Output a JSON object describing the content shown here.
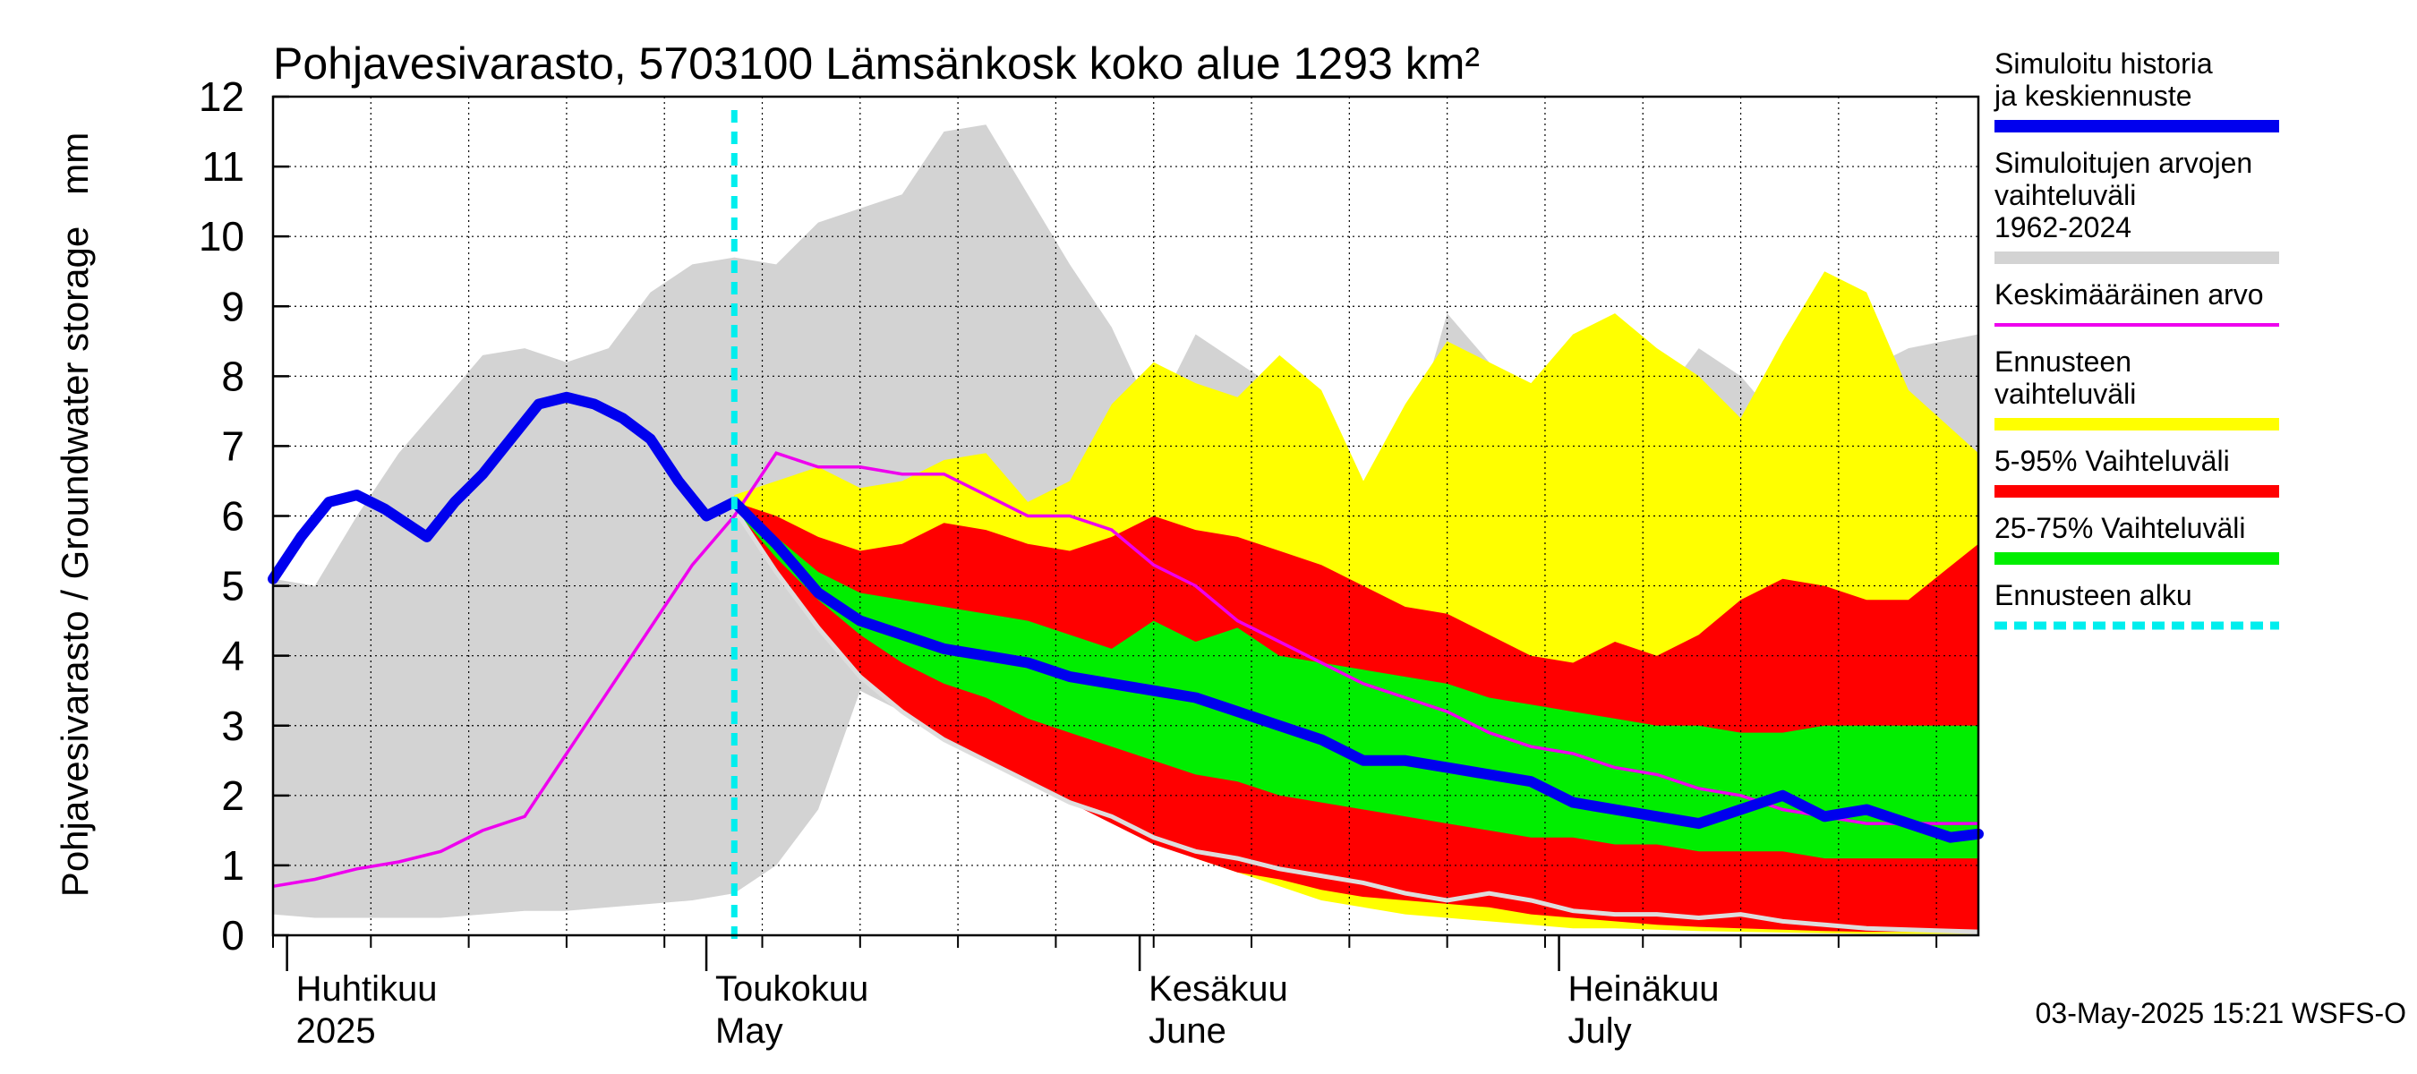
{
  "chart_data": {
    "type": "area",
    "title": "Pohjavesivarasto, 5703100 Lämsänkosk koko alue 1293 km²",
    "ylabel": "Pohjavesivarasto / Groundwater storage   mm",
    "ylim": [
      0,
      12
    ],
    "yticks": [
      0,
      1,
      2,
      3,
      4,
      5,
      6,
      7,
      8,
      9,
      10,
      11,
      12
    ],
    "xlim": [
      "2025-03-31",
      "2025-07-31"
    ],
    "grid": true,
    "legend_position": "right",
    "month_labels": [
      {
        "date": "2025-04-01",
        "fi": "Huhtikuu",
        "en": "2025"
      },
      {
        "date": "2025-05-01",
        "fi": "Toukokuu",
        "en": "May"
      },
      {
        "date": "2025-06-01",
        "fi": "Kesäkuu",
        "en": "June"
      },
      {
        "date": "2025-07-01",
        "fi": "Heinäkuu",
        "en": "July"
      }
    ],
    "forecast_start": "2025-05-03",
    "timestamp": "03-May-2025 15:21 WSFS-O",
    "colors": {
      "history": "#0000ee",
      "hist_range": "#d3d3d3",
      "mean": "#ee00ee",
      "forecast_range": "#ffff00",
      "p5_95": "#ff0000",
      "p25_75": "#00ee00",
      "forecast_start": "#00eeee",
      "forecast_line_light": "#dddddd"
    },
    "series": [
      {
        "key": "hist_range",
        "name": "Simuloitujen arvojen vaihteluväli 1962-2024",
        "x": [
          "2025-03-31",
          "2025-04-03",
          "2025-04-06",
          "2025-04-09",
          "2025-04-12",
          "2025-04-15",
          "2025-04-18",
          "2025-04-21",
          "2025-04-24",
          "2025-04-27",
          "2025-04-30",
          "2025-05-03",
          "2025-05-06",
          "2025-05-09",
          "2025-05-12",
          "2025-05-15",
          "2025-05-18",
          "2025-05-21",
          "2025-05-24",
          "2025-05-27",
          "2025-05-30",
          "2025-06-02",
          "2025-06-05",
          "2025-06-08",
          "2025-06-11",
          "2025-06-14",
          "2025-06-17",
          "2025-06-20",
          "2025-06-23",
          "2025-06-26",
          "2025-06-29",
          "2025-07-02",
          "2025-07-05",
          "2025-07-08",
          "2025-07-11",
          "2025-07-14",
          "2025-07-17",
          "2025-07-20",
          "2025-07-23",
          "2025-07-26",
          "2025-07-31"
        ],
        "upper": [
          5.1,
          5.0,
          6.0,
          6.9,
          7.6,
          8.3,
          8.4,
          8.2,
          8.4,
          9.2,
          9.6,
          9.7,
          9.6,
          10.2,
          10.4,
          10.6,
          11.5,
          11.6,
          10.6,
          9.6,
          8.7,
          7.4,
          8.6,
          8.2,
          7.8,
          7.2,
          5.7,
          6.8,
          8.9,
          8.2,
          7.4,
          8.3,
          8.7,
          7.6,
          8.4,
          8.0,
          7.3,
          7.5,
          8.1,
          8.4,
          8.6
        ],
        "lower": [
          0.3,
          0.25,
          0.25,
          0.25,
          0.25,
          0.3,
          0.35,
          0.35,
          0.4,
          0.45,
          0.5,
          0.6,
          1.0,
          1.8,
          3.5,
          3.2,
          3.4,
          3.0,
          2.6,
          2.3,
          2.0,
          1.8,
          1.5,
          1.2,
          1.0,
          0.8,
          0.7,
          0.6,
          0.5,
          0.35,
          0.3,
          0.2,
          0.2,
          0.15,
          0.1,
          0.08,
          0.05,
          0.05,
          0.04,
          0.03,
          0.03
        ]
      },
      {
        "key": "forecast_range",
        "name": "Ennusteen vaihteluväli",
        "x": [
          "2025-05-03",
          "2025-05-06",
          "2025-05-09",
          "2025-05-12",
          "2025-05-15",
          "2025-05-18",
          "2025-05-21",
          "2025-05-24",
          "2025-05-27",
          "2025-05-30",
          "2025-06-02",
          "2025-06-05",
          "2025-06-08",
          "2025-06-11",
          "2025-06-14",
          "2025-06-17",
          "2025-06-20",
          "2025-06-23",
          "2025-06-26",
          "2025-06-29",
          "2025-07-02",
          "2025-07-05",
          "2025-07-08",
          "2025-07-11",
          "2025-07-14",
          "2025-07-17",
          "2025-07-20",
          "2025-07-23",
          "2025-07-26",
          "2025-07-31"
        ],
        "upper": [
          6.3,
          6.5,
          6.7,
          6.4,
          6.5,
          6.8,
          6.9,
          6.2,
          6.5,
          7.6,
          8.2,
          7.9,
          7.7,
          8.3,
          7.8,
          6.5,
          7.6,
          8.5,
          8.2,
          7.9,
          8.6,
          8.9,
          8.4,
          8.0,
          7.4,
          8.5,
          9.5,
          9.2,
          7.8,
          6.9
        ],
        "lower": [
          6.1,
          5.3,
          4.5,
          3.8,
          3.3,
          2.9,
          2.6,
          2.3,
          2.0,
          1.7,
          1.4,
          1.1,
          0.9,
          0.7,
          0.5,
          0.4,
          0.3,
          0.25,
          0.2,
          0.15,
          0.1,
          0.1,
          0.08,
          0.06,
          0.05,
          0.04,
          0.03,
          0.02,
          0.02,
          0.02
        ]
      },
      {
        "key": "p5_95",
        "name": "5-95% Vaihteluväli",
        "x": [
          "2025-05-03",
          "2025-05-06",
          "2025-05-09",
          "2025-05-12",
          "2025-05-15",
          "2025-05-18",
          "2025-05-21",
          "2025-05-24",
          "2025-05-27",
          "2025-05-30",
          "2025-06-02",
          "2025-06-05",
          "2025-06-08",
          "2025-06-11",
          "2025-06-14",
          "2025-06-17",
          "2025-06-20",
          "2025-06-23",
          "2025-06-26",
          "2025-06-29",
          "2025-07-02",
          "2025-07-05",
          "2025-07-08",
          "2025-07-11",
          "2025-07-14",
          "2025-07-17",
          "2025-07-20",
          "2025-07-23",
          "2025-07-26",
          "2025-07-31"
        ],
        "upper": [
          6.2,
          6.0,
          5.7,
          5.5,
          5.6,
          5.9,
          5.8,
          5.6,
          5.5,
          5.7,
          6.0,
          5.8,
          5.7,
          5.5,
          5.3,
          5.0,
          4.7,
          4.6,
          4.3,
          4.0,
          3.9,
          4.2,
          4.0,
          4.3,
          4.8,
          5.1,
          5.0,
          4.8,
          4.8,
          5.6
        ],
        "lower": [
          6.1,
          5.2,
          4.4,
          3.7,
          3.2,
          2.8,
          2.5,
          2.2,
          1.9,
          1.6,
          1.3,
          1.1,
          0.9,
          0.8,
          0.65,
          0.55,
          0.5,
          0.45,
          0.4,
          0.3,
          0.25,
          0.2,
          0.15,
          0.12,
          0.1,
          0.08,
          0.06,
          0.05,
          0.05,
          0.05
        ]
      },
      {
        "key": "p25_75",
        "name": "25-75% Vaihteluväli",
        "x": [
          "2025-05-03",
          "2025-05-06",
          "2025-05-09",
          "2025-05-12",
          "2025-05-15",
          "2025-05-18",
          "2025-05-21",
          "2025-05-24",
          "2025-05-27",
          "2025-05-30",
          "2025-06-02",
          "2025-06-05",
          "2025-06-08",
          "2025-06-11",
          "2025-06-14",
          "2025-06-17",
          "2025-06-20",
          "2025-06-23",
          "2025-06-26",
          "2025-06-29",
          "2025-07-02",
          "2025-07-05",
          "2025-07-08",
          "2025-07-11",
          "2025-07-14",
          "2025-07-17",
          "2025-07-20",
          "2025-07-23",
          "2025-07-26",
          "2025-07-31"
        ],
        "upper": [
          6.2,
          5.7,
          5.2,
          4.9,
          4.8,
          4.7,
          4.6,
          4.5,
          4.3,
          4.1,
          4.5,
          4.2,
          4.4,
          4.0,
          3.9,
          3.8,
          3.7,
          3.6,
          3.4,
          3.3,
          3.2,
          3.1,
          3.0,
          3.0,
          2.9,
          2.9,
          3.0,
          3.0,
          3.0,
          3.0
        ],
        "lower": [
          6.1,
          5.4,
          4.8,
          4.3,
          3.9,
          3.6,
          3.4,
          3.1,
          2.9,
          2.7,
          2.5,
          2.3,
          2.2,
          2.0,
          1.9,
          1.8,
          1.7,
          1.6,
          1.5,
          1.4,
          1.4,
          1.3,
          1.3,
          1.2,
          1.2,
          1.2,
          1.1,
          1.1,
          1.1,
          1.1
        ]
      },
      {
        "key": "history",
        "name": "Simuloitu historia ja keskiennuste",
        "x": [
          "2025-03-31",
          "2025-04-02",
          "2025-04-04",
          "2025-04-06",
          "2025-04-08",
          "2025-04-11",
          "2025-04-13",
          "2025-04-15",
          "2025-04-17",
          "2025-04-19",
          "2025-04-21",
          "2025-04-23",
          "2025-04-25",
          "2025-04-27",
          "2025-04-29",
          "2025-05-01",
          "2025-05-03",
          "2025-05-06",
          "2025-05-09",
          "2025-05-12",
          "2025-05-15",
          "2025-05-18",
          "2025-05-21",
          "2025-05-24",
          "2025-05-27",
          "2025-05-30",
          "2025-06-02",
          "2025-06-05",
          "2025-06-08",
          "2025-06-11",
          "2025-06-14",
          "2025-06-17",
          "2025-06-20",
          "2025-06-23",
          "2025-06-26",
          "2025-06-29",
          "2025-07-02",
          "2025-07-05",
          "2025-07-08",
          "2025-07-11",
          "2025-07-14",
          "2025-07-17",
          "2025-07-20",
          "2025-07-23",
          "2025-07-26",
          "2025-07-29",
          "2025-07-31"
        ],
        "y": [
          5.1,
          5.7,
          6.2,
          6.3,
          6.1,
          5.7,
          6.2,
          6.6,
          7.1,
          7.6,
          7.7,
          7.6,
          7.4,
          7.1,
          6.5,
          6.0,
          6.2,
          5.6,
          4.9,
          4.5,
          4.3,
          4.1,
          4.0,
          3.9,
          3.7,
          3.6,
          3.5,
          3.4,
          3.2,
          3.0,
          2.8,
          2.5,
          2.5,
          2.4,
          2.3,
          2.2,
          1.9,
          1.8,
          1.7,
          1.6,
          1.8,
          2.0,
          1.7,
          1.8,
          1.6,
          1.4,
          1.45
        ]
      },
      {
        "key": "mean",
        "name": "Keskimääräinen arvo",
        "x": [
          "2025-03-31",
          "2025-04-03",
          "2025-04-06",
          "2025-04-09",
          "2025-04-12",
          "2025-04-15",
          "2025-04-18",
          "2025-04-21",
          "2025-04-24",
          "2025-04-27",
          "2025-04-30",
          "2025-05-03",
          "2025-05-06",
          "2025-05-09",
          "2025-05-12",
          "2025-05-15",
          "2025-05-18",
          "2025-05-21",
          "2025-05-24",
          "2025-05-27",
          "2025-05-30",
          "2025-06-02",
          "2025-06-05",
          "2025-06-08",
          "2025-06-11",
          "2025-06-14",
          "2025-06-17",
          "2025-06-20",
          "2025-06-23",
          "2025-06-26",
          "2025-06-29",
          "2025-07-02",
          "2025-07-05",
          "2025-07-08",
          "2025-07-11",
          "2025-07-14",
          "2025-07-17",
          "2025-07-20",
          "2025-07-23",
          "2025-07-26",
          "2025-07-31"
        ],
        "y": [
          0.7,
          0.8,
          0.95,
          1.05,
          1.2,
          1.5,
          1.7,
          2.6,
          3.5,
          4.4,
          5.3,
          6.0,
          6.9,
          6.7,
          6.7,
          6.6,
          6.6,
          6.3,
          6.0,
          6.0,
          5.8,
          5.3,
          5.0,
          4.5,
          4.2,
          3.9,
          3.6,
          3.4,
          3.2,
          2.9,
          2.7,
          2.6,
          2.4,
          2.3,
          2.1,
          2.0,
          1.8,
          1.7,
          1.6,
          1.6,
          1.6
        ]
      },
      {
        "key": "forecast_line_light",
        "name": "",
        "x": [
          "2025-05-03",
          "2025-05-06",
          "2025-05-09",
          "2025-05-12",
          "2025-05-15",
          "2025-05-18",
          "2025-05-21",
          "2025-05-24",
          "2025-05-27",
          "2025-05-30",
          "2025-06-02",
          "2025-06-05",
          "2025-06-08",
          "2025-06-11",
          "2025-06-14",
          "2025-06-17",
          "2025-06-20",
          "2025-06-23",
          "2025-06-26",
          "2025-06-29",
          "2025-07-02",
          "2025-07-05",
          "2025-07-08",
          "2025-07-11",
          "2025-07-14",
          "2025-07-17",
          "2025-07-20",
          "2025-07-23",
          "2025-07-26",
          "2025-07-31"
        ],
        "y": [
          6.1,
          5.2,
          4.4,
          3.7,
          3.2,
          2.8,
          2.5,
          2.2,
          1.9,
          1.7,
          1.4,
          1.2,
          1.1,
          0.95,
          0.85,
          0.75,
          0.6,
          0.5,
          0.6,
          0.5,
          0.35,
          0.3,
          0.3,
          0.25,
          0.3,
          0.2,
          0.15,
          0.1,
          0.08,
          0.05
        ]
      }
    ],
    "legend_items": [
      {
        "label": "Simuloitu historia ja keskiennuste",
        "color": "#0000ee",
        "style": "thick"
      },
      {
        "label": "Simuloitujen arvojen vaihteluväli 1962-2024",
        "color": "#d3d3d3",
        "style": "thick"
      },
      {
        "label": "Keskimääräinen arvo",
        "color": "#ee00ee",
        "style": "thin"
      },
      {
        "label": "Ennusteen vaihteluväli",
        "color": "#ffff00",
        "style": "thick"
      },
      {
        "label": "5-95% Vaihteluväli",
        "color": "#ff0000",
        "style": "thick"
      },
      {
        "label": "25-75% Vaihteluväli",
        "color": "#00ee00",
        "style": "thick"
      },
      {
        "label": "Ennusteen alku",
        "color": "#00eeee",
        "style": "dashed"
      }
    ]
  }
}
